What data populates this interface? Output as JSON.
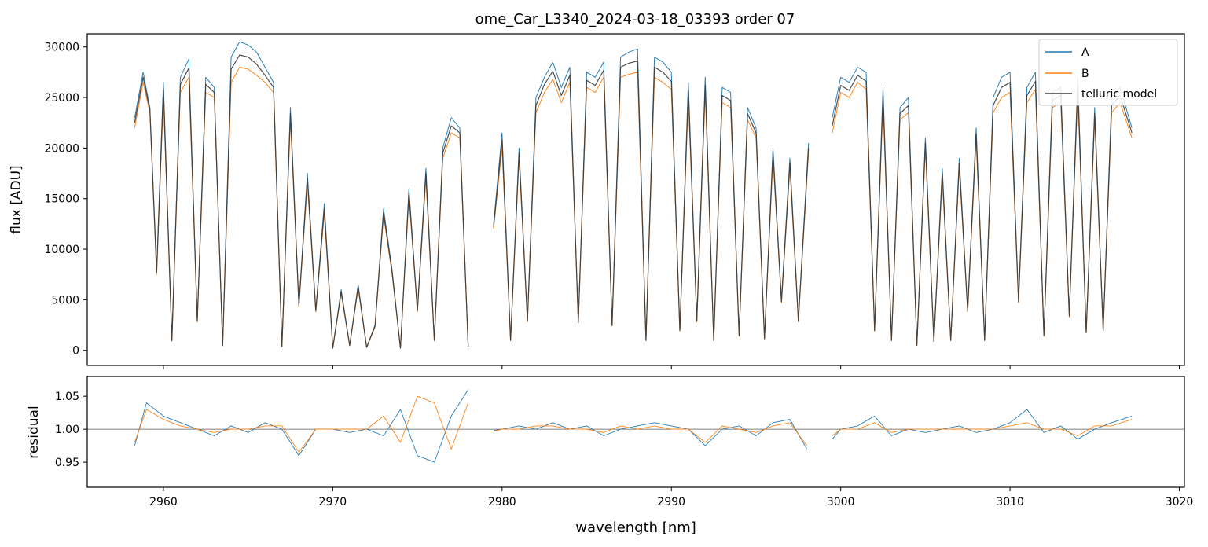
{
  "title": "ome_Car_L3340_2024-03-18_03393  order 07",
  "legend": {
    "placement": "top-right",
    "entries": [
      {
        "label": "A",
        "color": "#1f77b4"
      },
      {
        "label": "B",
        "color": "#ff7f0e"
      },
      {
        "label": "telluric model",
        "color": "#3a3a3a"
      }
    ]
  },
  "chart_data": [
    {
      "type": "line",
      "panel": "top",
      "xlabel": "",
      "ylabel": "flux [ADU]",
      "xlim": [
        2955.5,
        3020.3
      ],
      "ylim": [
        -1500,
        31300
      ],
      "yticks": [
        0,
        5000,
        10000,
        15000,
        20000,
        25000,
        30000
      ],
      "xticks": [
        2960,
        2970,
        2980,
        2990,
        3000,
        3010,
        3020
      ],
      "grid": false,
      "segments": [
        [
          2958.3,
          2978.0
        ],
        [
          2979.5,
          2998.1
        ],
        [
          2999.5,
          3017.2
        ]
      ],
      "series": [
        {
          "name": "A",
          "color": "#1f77b4",
          "x": [
            2958.3,
            2958.8,
            2959.2,
            2959.6,
            2960.0,
            2960.5,
            2961.0,
            2961.5,
            2962.0,
            2962.5,
            2963.0,
            2963.5,
            2964.0,
            2964.5,
            2965.0,
            2965.5,
            2966.0,
            2966.5,
            2967.0,
            2967.5,
            2968.0,
            2968.5,
            2969.0,
            2969.5,
            2970.0,
            2970.5,
            2971.0,
            2971.5,
            2972.0,
            2972.5,
            2973.0,
            2973.5,
            2974.0,
            2974.5,
            2975.0,
            2975.5,
            2976.0,
            2976.5,
            2977.0,
            2977.5,
            2978.0,
            2979.5,
            2980.0,
            2980.5,
            2981.0,
            2981.5,
            2982.0,
            2982.5,
            2983.0,
            2983.5,
            2984.0,
            2984.5,
            2985.0,
            2985.5,
            2986.0,
            2986.5,
            2987.0,
            2987.5,
            2988.0,
            2988.5,
            2989.0,
            2989.5,
            2990.0,
            2990.5,
            2991.0,
            2991.5,
            2992.0,
            2992.5,
            2993.0,
            2993.5,
            2994.0,
            2994.5,
            2995.0,
            2995.5,
            2996.0,
            2996.5,
            2997.0,
            2997.5,
            2998.1,
            2999.5,
            3000.0,
            3000.5,
            3001.0,
            3001.5,
            3002.0,
            3002.5,
            3003.0,
            3003.5,
            3004.0,
            3004.5,
            3005.0,
            3005.5,
            3006.0,
            3006.5,
            3007.0,
            3007.5,
            3008.0,
            3008.5,
            3009.0,
            3009.5,
            3010.0,
            3010.5,
            3011.0,
            3011.5,
            3012.0,
            3012.5,
            3013.0,
            3013.5,
            3014.0,
            3014.5,
            3015.0,
            3015.5,
            3016.0,
            3016.5,
            3017.2
          ],
          "y": [
            23000,
            27500,
            24000,
            8000,
            26500,
            1000,
            27000,
            28800,
            3000,
            27000,
            26000,
            500,
            29000,
            30500,
            30200,
            29500,
            28000,
            26500,
            400,
            24000,
            4500,
            17500,
            4000,
            14500,
            200,
            6000,
            500,
            6500,
            300,
            2500,
            14000,
            8000,
            200,
            16000,
            4000,
            18000,
            1000,
            20000,
            23000,
            22000,
            400,
            12500,
            21500,
            1000,
            20000,
            3000,
            25000,
            27000,
            28500,
            26000,
            28000,
            2800,
            27500,
            27000,
            28500,
            2500,
            29000,
            29500,
            29800,
            1000,
            29000,
            28500,
            27500,
            2000,
            26500,
            3000,
            27000,
            1000,
            26000,
            25500,
            1500,
            24000,
            22000,
            1200,
            20000,
            5000,
            19000,
            3000,
            20500,
            23000,
            27000,
            26500,
            28000,
            27500,
            2000,
            26000,
            1000,
            24000,
            25000,
            500,
            21000,
            900,
            18000,
            1000,
            19000,
            4000,
            22000,
            1000,
            25000,
            27000,
            27500,
            5000,
            26000,
            27500,
            1500,
            25500,
            26000,
            3500,
            27000,
            1800,
            24000,
            2000,
            25000,
            26000,
            22000
          ],
          "note_free": true
        },
        {
          "name": "B",
          "color": "#ff7f0e",
          "x": [
            2958.3,
            2958.8,
            2959.2,
            2959.6,
            2960.0,
            2960.5,
            2961.0,
            2961.5,
            2962.0,
            2962.5,
            2963.0,
            2963.5,
            2964.0,
            2964.5,
            2965.0,
            2965.5,
            2966.0,
            2966.5,
            2967.0,
            2967.5,
            2968.0,
            2968.5,
            2969.0,
            2969.5,
            2970.0,
            2970.5,
            2971.0,
            2971.5,
            2972.0,
            2972.5,
            2973.0,
            2973.5,
            2974.0,
            2974.5,
            2975.0,
            2975.5,
            2976.0,
            2976.5,
            2977.0,
            2977.5,
            2978.0,
            2979.5,
            2980.0,
            2980.5,
            2981.0,
            2981.5,
            2982.0,
            2982.5,
            2983.0,
            2983.5,
            2984.0,
            2984.5,
            2985.0,
            2985.5,
            2986.0,
            2986.5,
            2987.0,
            2987.5,
            2988.0,
            2988.5,
            2989.0,
            2989.5,
            2990.0,
            2990.5,
            2991.0,
            2991.5,
            2992.0,
            2992.5,
            2993.0,
            2993.5,
            2994.0,
            2994.5,
            2995.0,
            2995.5,
            2996.0,
            2996.5,
            2997.0,
            2997.5,
            2998.1,
            2999.5,
            3000.0,
            3000.5,
            3001.0,
            3001.5,
            3002.0,
            3002.5,
            3003.0,
            3003.5,
            3004.0,
            3004.5,
            3005.0,
            3005.5,
            3006.0,
            3006.5,
            3007.0,
            3007.5,
            3008.0,
            3008.5,
            3009.0,
            3009.5,
            3010.0,
            3010.5,
            3011.0,
            3011.5,
            3012.0,
            3012.5,
            3013.0,
            3013.5,
            3014.0,
            3014.5,
            3015.0,
            3015.5,
            3016.0,
            3016.5,
            3017.2
          ],
          "y": [
            22000,
            26500,
            23500,
            7500,
            25000,
            900,
            25500,
            27000,
            2800,
            25500,
            25000,
            450,
            26500,
            28000,
            27800,
            27200,
            26500,
            25500,
            350,
            22800,
            4300,
            16500,
            3800,
            13500,
            200,
            5600,
            450,
            6100,
            280,
            2300,
            13300,
            7600,
            200,
            15200,
            3800,
            17000,
            950,
            19000,
            21500,
            21000,
            380,
            12000,
            20000,
            950,
            19000,
            2800,
            23500,
            25500,
            26800,
            24500,
            26500,
            2700,
            26000,
            25500,
            27000,
            2400,
            27000,
            27300,
            27500,
            950,
            27000,
            26500,
            25800,
            1900,
            25000,
            2800,
            25500,
            950,
            24500,
            24000,
            1400,
            22800,
            21000,
            1100,
            19000,
            4700,
            18000,
            2800,
            19500,
            21500,
            25500,
            25000,
            26500,
            25800,
            1900,
            24500,
            950,
            22800,
            23500,
            480,
            20000,
            850,
            17000,
            950,
            18000,
            3800,
            20800,
            950,
            23500,
            25000,
            25500,
            4700,
            24500,
            25800,
            1400,
            24000,
            24500,
            3300,
            25500,
            1700,
            22800,
            1900,
            23500,
            24500,
            21000
          ]
        },
        {
          "name": "telluric model",
          "color": "#3a3a3a",
          "x": [
            2958.3,
            2958.8,
            2959.2,
            2959.6,
            2960.0,
            2960.5,
            2961.0,
            2961.5,
            2962.0,
            2962.5,
            2963.0,
            2963.5,
            2964.0,
            2964.5,
            2965.0,
            2965.5,
            2966.0,
            2966.5,
            2967.0,
            2967.5,
            2968.0,
            2968.5,
            2969.0,
            2969.5,
            2970.0,
            2970.5,
            2971.0,
            2971.5,
            2972.0,
            2972.5,
            2973.0,
            2973.5,
            2974.0,
            2974.5,
            2975.0,
            2975.5,
            2976.0,
            2976.5,
            2977.0,
            2977.5,
            2978.0,
            2979.5,
            2980.0,
            2980.5,
            2981.0,
            2981.5,
            2982.0,
            2982.5,
            2983.0,
            2983.5,
            2984.0,
            2984.5,
            2985.0,
            2985.5,
            2986.0,
            2986.5,
            2987.0,
            2987.5,
            2988.0,
            2988.5,
            2989.0,
            2989.5,
            2990.0,
            2990.5,
            2991.0,
            2991.5,
            2992.0,
            2992.5,
            2993.0,
            2993.5,
            2994.0,
            2994.5,
            2995.0,
            2995.5,
            2996.0,
            2996.5,
            2997.0,
            2997.5,
            2998.1,
            2999.5,
            3000.0,
            3000.5,
            3001.0,
            3001.5,
            3002.0,
            3002.5,
            3003.0,
            3003.5,
            3004.0,
            3004.5,
            3005.0,
            3005.5,
            3006.0,
            3006.5,
            3007.0,
            3007.5,
            3008.0,
            3008.5,
            3009.0,
            3009.5,
            3010.0,
            3010.5,
            3011.0,
            3011.5,
            3012.0,
            3012.5,
            3013.0,
            3013.5,
            3014.0,
            3014.5,
            3015.0,
            3015.5,
            3016.0,
            3016.5,
            3017.2
          ],
          "y": [
            22500,
            27000,
            23800,
            7700,
            25800,
            950,
            26300,
            27900,
            2900,
            26300,
            25500,
            470,
            27800,
            29200,
            29000,
            28300,
            27200,
            26000,
            380,
            23400,
            4400,
            17000,
            3900,
            14000,
            200,
            5800,
            470,
            6300,
            290,
            2400,
            13600,
            7800,
            200,
            15600,
            3900,
            17500,
            970,
            19500,
            22200,
            21500,
            390,
            12200,
            20800,
            970,
            19500,
            2900,
            24200,
            26300,
            27600,
            25200,
            27200,
            2750,
            26700,
            26200,
            27700,
            2450,
            28000,
            28400,
            28600,
            970,
            28000,
            27500,
            26600,
            1950,
            25700,
            2900,
            26200,
            970,
            25200,
            24700,
            1450,
            23400,
            21500,
            1150,
            19500,
            4800,
            18500,
            2900,
            20000,
            22200,
            26200,
            25700,
            27200,
            26600,
            1950,
            25200,
            970,
            23400,
            24200,
            490,
            20500,
            870,
            17500,
            970,
            18500,
            3900,
            21400,
            970,
            24200,
            26000,
            26500,
            4800,
            25200,
            26600,
            1450,
            24700,
            25200,
            3400,
            26200,
            1750,
            23400,
            1950,
            24200,
            25200,
            21500
          ]
        }
      ]
    },
    {
      "type": "line",
      "panel": "bottom",
      "xlabel": "wavelength [nm]",
      "ylabel": "residual",
      "xlim": [
        2955.5,
        3020.3
      ],
      "ylim": [
        0.912,
        1.08
      ],
      "yticks": [
        0.95,
        1.0,
        1.05
      ],
      "xticks": [
        2960,
        2970,
        2980,
        2990,
        3000,
        3010,
        3020
      ],
      "reference_line": 1.0,
      "series": [
        {
          "name": "A",
          "color": "#1f77b4",
          "x": [
            2958.3,
            2959,
            2960,
            2961,
            2962,
            2963,
            2964,
            2965,
            2966,
            2967,
            2968,
            2969,
            2970,
            2971,
            2972,
            2973,
            2974,
            2975,
            2976,
            2977,
            2978,
            2979.5,
            2980,
            2981,
            2982,
            2983,
            2984,
            2985,
            2986,
            2987,
            2988,
            2989,
            2990,
            2991,
            2992,
            2993,
            2994,
            2995,
            2996,
            2997,
            2998,
            2999.5,
            3000,
            3001,
            3002,
            3003,
            3004,
            3005,
            3006,
            3007,
            3008,
            3009,
            3010,
            3011,
            3012,
            3013,
            3014,
            3015,
            3016,
            3017.2
          ],
          "y": [
            0.975,
            1.04,
            1.02,
            1.01,
            1.0,
            0.99,
            1.005,
            0.995,
            1.01,
            1.0,
            0.96,
            1.0,
            1.0,
            0.995,
            1.0,
            0.99,
            1.03,
            0.96,
            0.95,
            1.02,
            1.06,
            0.998,
            1.0,
            1.005,
            1.0,
            1.01,
            1.0,
            1.005,
            0.99,
            1.0,
            1.005,
            1.01,
            1.005,
            1.0,
            0.975,
            1.0,
            1.005,
            0.99,
            1.01,
            1.015,
            0.97,
            0.985,
            1.0,
            1.005,
            1.02,
            0.99,
            1.0,
            0.995,
            1.0,
            1.005,
            0.995,
            1.0,
            1.01,
            1.03,
            0.995,
            1.005,
            0.985,
            1.0,
            1.01,
            1.02
          ]
        },
        {
          "name": "B",
          "color": "#ff7f0e",
          "x": [
            2958.3,
            2959,
            2960,
            2961,
            2962,
            2963,
            2964,
            2965,
            2966,
            2967,
            2968,
            2969,
            2970,
            2971,
            2972,
            2973,
            2974,
            2975,
            2976,
            2977,
            2978,
            2979.5,
            2980,
            2981,
            2982,
            2983,
            2984,
            2985,
            2986,
            2987,
            2988,
            2989,
            2990,
            2991,
            2992,
            2993,
            2994,
            2995,
            2996,
            2997,
            2998,
            2999.5,
            3000,
            3001,
            3002,
            3003,
            3004,
            3005,
            3006,
            3007,
            3008,
            3009,
            3010,
            3011,
            3012,
            3013,
            3014,
            3015,
            3016,
            3017.2
          ],
          "y": [
            0.98,
            1.03,
            1.015,
            1.005,
            1.0,
            0.995,
            1.0,
            1.0,
            1.005,
            1.005,
            0.965,
            1.0,
            1.0,
            1.0,
            1.0,
            1.02,
            0.98,
            1.05,
            1.04,
            0.97,
            1.04,
            0.997,
            1.0,
            1.0,
            1.005,
            1.005,
            1.0,
            1.0,
            0.995,
            1.005,
            1.0,
            1.005,
            1.0,
            1.0,
            0.98,
            1.005,
            1.0,
            0.995,
            1.005,
            1.01,
            0.975,
            0.99,
            1.0,
            1.0,
            1.01,
            0.995,
            1.0,
            1.0,
            1.0,
            1.0,
            1.0,
            1.0,
            1.005,
            1.01,
            1.0,
            1.0,
            0.99,
            1.005,
            1.005,
            1.015
          ]
        }
      ]
    }
  ]
}
